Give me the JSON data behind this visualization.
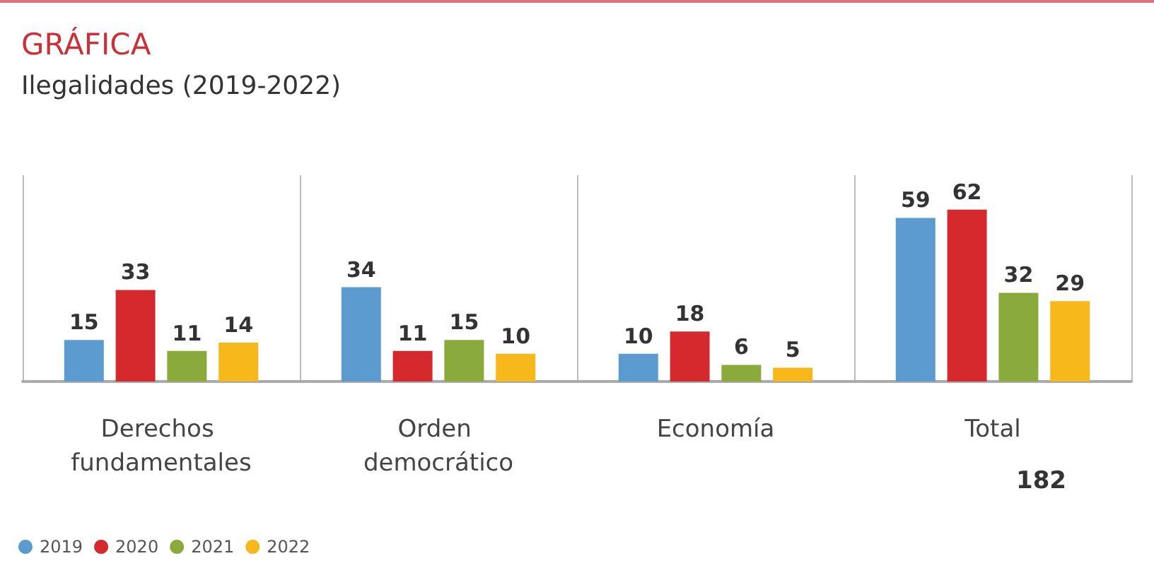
{
  "chart_data": {
    "type": "bar",
    "title": "GRÁFICA",
    "subtitle": "Ilegalidades (2019-2022)",
    "categories": [
      "Derechos fundamentales",
      "Orden democrático",
      "Economía",
      "Total"
    ],
    "series": [
      {
        "name": "2019",
        "color": "#5b9bd0",
        "values": [
          15,
          34,
          10,
          59
        ]
      },
      {
        "name": "2020",
        "color": "#d42a2e",
        "values": [
          33,
          11,
          18,
          62
        ]
      },
      {
        "name": "2021",
        "color": "#8aab3c",
        "values": [
          11,
          15,
          6,
          32
        ]
      },
      {
        "name": "2022",
        "color": "#f6b81b",
        "values": [
          14,
          10,
          5,
          29
        ]
      }
    ],
    "data_labels": true,
    "grid": "x",
    "legend": "bottom left",
    "annotations": [
      "182"
    ]
  }
}
